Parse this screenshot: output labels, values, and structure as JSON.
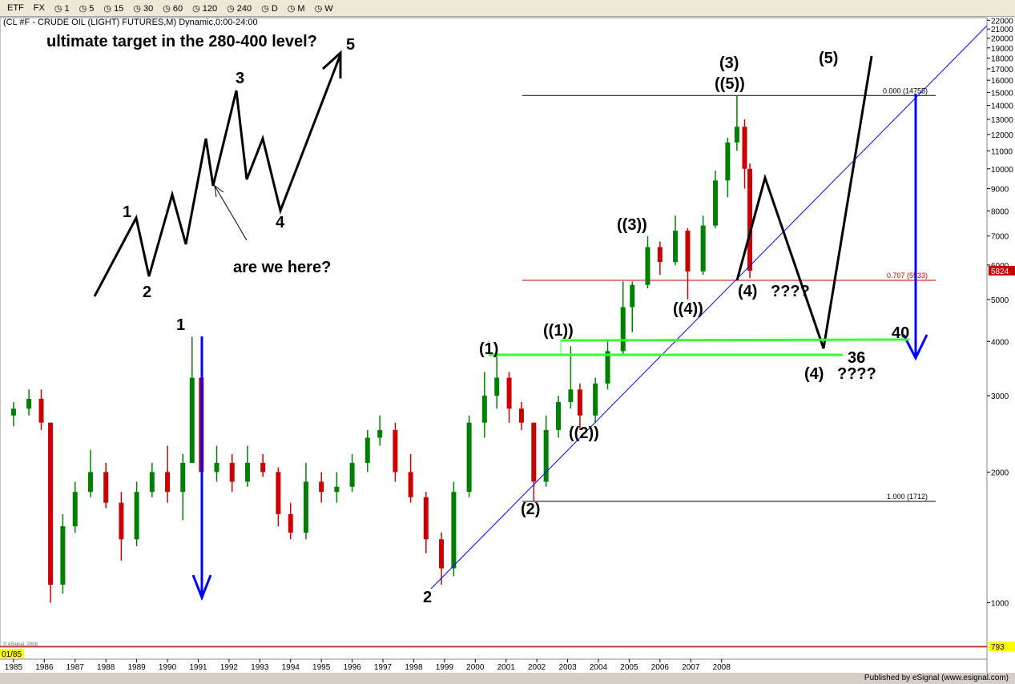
{
  "toolbar": {
    "items": [
      "ETF",
      "FX",
      "1",
      "5",
      "15",
      "30",
      "60",
      "120",
      "240",
      "D",
      "M",
      "W"
    ]
  },
  "chart_data": {
    "type": "candlestick",
    "title": "(CL #F - CRUDE OIL (LIGHT) FUTURES,M) Dynamic,0:00-24:00",
    "log_scale": true,
    "up_color": "#008000",
    "down_color": "#cc0000",
    "x": [
      1985.0,
      1985.5,
      1985.9,
      1986.2,
      1986.6,
      1987.0,
      1987.5,
      1988.0,
      1988.5,
      1989.0,
      1989.5,
      1990.0,
      1990.5,
      1990.8,
      1991.1,
      1991.6,
      1992.1,
      1992.6,
      1993.1,
      1993.6,
      1994.0,
      1994.5,
      1995.0,
      1995.5,
      1996.0,
      1996.5,
      1996.9,
      1997.4,
      1997.9,
      1998.4,
      1998.9,
      1999.3,
      1999.8,
      2000.3,
      2000.7,
      2001.1,
      2001.5,
      2001.9,
      2002.3,
      2002.7,
      2003.1,
      2003.4,
      2003.9,
      2004.3,
      2004.8,
      2005.1,
      2005.6,
      2006.0,
      2006.5,
      2006.9,
      2007.4,
      2007.8,
      2008.2,
      2008.5,
      2008.75,
      2008.92
    ],
    "open": [
      2700,
      2800,
      2950,
      2600,
      1100,
      1500,
      1800,
      2000,
      1700,
      1400,
      1800,
      2000,
      1800,
      2100,
      3300,
      2000,
      2100,
      1900,
      2100,
      2000,
      1600,
      1450,
      1900,
      1800,
      1850,
      2100,
      2400,
      2500,
      2000,
      1750,
      1400,
      1200,
      1800,
      2600,
      3000,
      3300,
      2800,
      2600,
      1900,
      2500,
      2900,
      3100,
      2700,
      3200,
      3800,
      4800,
      5400,
      6600,
      6100,
      7200,
      5800,
      7400,
      9400,
      11500,
      12500,
      10000
    ],
    "high": [
      2900,
      3100,
      3100,
      2600,
      1600,
      1900,
      2250,
      2100,
      1800,
      1900,
      2100,
      2300,
      2200,
      4100,
      3400,
      2300,
      2200,
      2300,
      2200,
      2050,
      1700,
      2100,
      2000,
      2000,
      2200,
      2500,
      2700,
      2600,
      2200,
      1800,
      1450,
      1900,
      2700,
      3400,
      3700,
      3400,
      2900,
      2600,
      2700,
      3000,
      3900,
      3200,
      3300,
      4000,
      5500,
      5500,
      7000,
      6800,
      7800,
      7300,
      7800,
      9900,
      11800,
      14755,
      13000,
      10300
    ],
    "low": [
      2550,
      2700,
      2500,
      1000,
      1050,
      1450,
      1750,
      1650,
      1250,
      1350,
      1750,
      1700,
      1550,
      2100,
      1800,
      1900,
      1800,
      1850,
      1950,
      1500,
      1400,
      1400,
      1700,
      1700,
      1800,
      2000,
      2300,
      1900,
      1700,
      1300,
      1100,
      1150,
      1750,
      2400,
      2800,
      2600,
      2500,
      1712,
      1850,
      2400,
      2800,
      2500,
      2600,
      3100,
      3700,
      4200,
      5300,
      5700,
      6000,
      5000,
      5700,
      7300,
      8600,
      11000,
      9000,
      5600
    ],
    "close": [
      2800,
      2950,
      2600,
      1100,
      1500,
      1800,
      2000,
      1700,
      1400,
      1800,
      2000,
      1800,
      2100,
      3300,
      2000,
      2100,
      1900,
      2100,
      2000,
      1600,
      1450,
      1900,
      1800,
      1850,
      2100,
      2400,
      2500,
      2000,
      1750,
      1400,
      1200,
      1800,
      2600,
      3000,
      3300,
      2800,
      2600,
      1900,
      2500,
      2900,
      3100,
      2700,
      3200,
      3800,
      4800,
      5400,
      6600,
      6100,
      7200,
      5800,
      7400,
      9400,
      11500,
      12500,
      10000,
      5824
    ],
    "xlim": [
      1984.56,
      2016.57
    ],
    "xticks": [
      1985,
      1986,
      1987,
      1988,
      1989,
      1990,
      1991,
      1992,
      1993,
      1994,
      1995,
      1996,
      1997,
      1998,
      1999,
      2000,
      2001,
      2002,
      2003,
      2004,
      2005,
      2006,
      2007,
      2008
    ],
    "ylim": [
      793,
      22500
    ],
    "yticks": [
      1000,
      2000,
      3000,
      4000,
      5000,
      6000,
      7000,
      8000,
      9000,
      10000,
      11000,
      12000,
      13000,
      14000,
      15000,
      16000,
      17000,
      18000,
      19000,
      20000,
      21000,
      22000
    ],
    "fib_levels": [
      {
        "value": 14755,
        "label": "0.000 (14755)",
        "color": "#000000"
      },
      {
        "value": 5533,
        "label": "0.707 (5533)",
        "color": "#cc0000"
      },
      {
        "value": 1712,
        "label": "1.000 (1712)",
        "color": "#000000"
      }
    ],
    "start_label": "01/85",
    "watermark": "© eSignal, 2008",
    "annotations": [
      "ultimate target in the 280-400 level?",
      "5",
      "3",
      "1",
      "2",
      "4",
      "are we here?",
      "1",
      "2",
      "(1)",
      "((1))",
      "((2))",
      "(2)",
      "((3))",
      "((4))",
      "(3)",
      "((5))",
      "(5)",
      "(4)",
      "????",
      "40",
      "36",
      "(4)",
      "????"
    ]
  },
  "footer": "Published by eSignal (www.esignal.com)"
}
